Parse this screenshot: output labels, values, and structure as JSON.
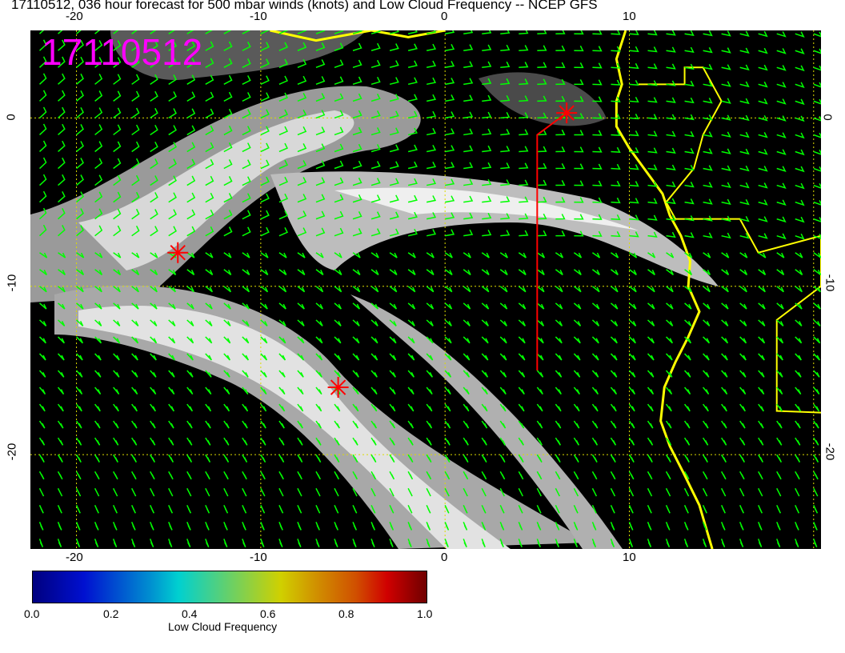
{
  "title": "17110512, 036 hour forecast for 500 mbar winds (knots) and Low Cloud Frequency -- NCEP GFS",
  "stamp": "17110512",
  "map": {
    "lon_range": [
      -22.5,
      20.4
    ],
    "lat_range": [
      -25.6,
      5.2
    ],
    "lon_ticks": [
      "-20",
      "-10",
      "0",
      "10"
    ],
    "lat_ticks": [
      "0",
      "-10",
      "-20"
    ],
    "coast_color": "#ffff00",
    "barb_color": "#00ff00",
    "marker_color": "#ff0000",
    "markers": [
      {
        "lon": -14.5,
        "lat": -8.0
      },
      {
        "lon": -5.8,
        "lat": -16.0
      },
      {
        "lon": 6.6,
        "lat": 0.3
      }
    ],
    "track": [
      [
        5.0,
        -15.0
      ],
      [
        5.0,
        -1.0
      ],
      [
        6.6,
        0.3
      ]
    ]
  },
  "colorbar": {
    "label": "Low Cloud Frequency",
    "ticks": [
      "0.0",
      "0.2",
      "0.4",
      "0.6",
      "0.8",
      "1.0"
    ],
    "range": [
      0,
      1
    ]
  }
}
